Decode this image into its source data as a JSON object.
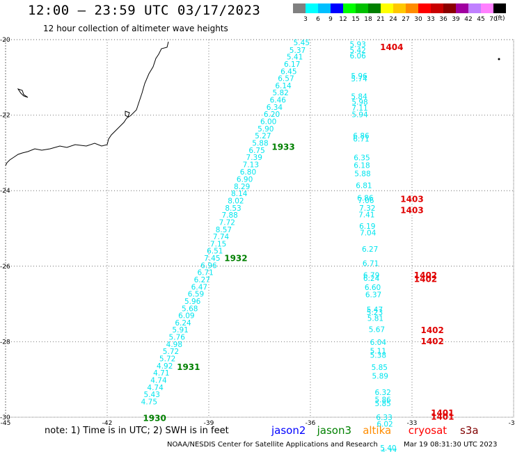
{
  "header": {
    "title": "12:00 – 23:59 UTC 03/17/2023",
    "subtitle": "12 hour collection of altimeter wave heights"
  },
  "color_scale": {
    "labels": [
      "3",
      "6",
      "9",
      "12",
      "15",
      "18",
      "21",
      "24",
      "27",
      "30",
      "33",
      "36",
      "39",
      "42",
      "45",
      "70"
    ],
    "colors": [
      "#808080",
      "#00ffff",
      "#00bfff",
      "#0000ff",
      "#00ff00",
      "#00c000",
      "#008000",
      "#ffff00",
      "#ffc800",
      "#ff8c00",
      "#ff0000",
      "#c80000",
      "#8b0000",
      "#a000a0",
      "#c080ff",
      "#ff80ff",
      "#000000"
    ],
    "unit": "(ft)"
  },
  "map": {
    "lon_min": -45,
    "lon_max": -30,
    "lat_min": -30,
    "lat_max": -20,
    "lat_ticks": [
      "-20",
      "-22",
      "-24",
      "-26",
      "-28",
      "-30"
    ],
    "lon_ticks": [
      "-45",
      "-42",
      "-39",
      "-36",
      "-33",
      "-30"
    ],
    "track_color": "#00e5ee",
    "tracks": [
      {
        "name": "west track",
        "points": [
          [
            -36.26,
            -20.0,
            "5.45"
          ],
          [
            -36.38,
            -20.2,
            "5.37"
          ],
          [
            -36.46,
            -20.38,
            "5.41"
          ],
          [
            -36.54,
            -20.57,
            "6.17"
          ],
          [
            -36.64,
            -20.76,
            "6.45"
          ],
          [
            -36.72,
            -20.95,
            "6.57"
          ],
          [
            -36.8,
            -21.14,
            "6.14"
          ],
          [
            -36.88,
            -21.33,
            "5.82"
          ],
          [
            -36.96,
            -21.52,
            "6.46"
          ],
          [
            -37.06,
            -21.71,
            "6.34"
          ],
          [
            -37.14,
            -21.9,
            "6.20"
          ],
          [
            -37.24,
            -22.09,
            "6.00"
          ],
          [
            -37.32,
            -22.28,
            "5.90"
          ],
          [
            -37.4,
            -22.47,
            "5.27"
          ],
          [
            -37.48,
            -22.66,
            "5.88"
          ],
          [
            -37.58,
            -22.85,
            "6.75"
          ],
          [
            -37.66,
            -23.04,
            "7.39"
          ],
          [
            -37.76,
            -23.23,
            "7.13"
          ],
          [
            -37.84,
            -23.43,
            "6.80"
          ],
          [
            -37.94,
            -23.62,
            "6.90"
          ],
          [
            -38.02,
            -23.81,
            "8.29"
          ],
          [
            -38.1,
            -24.0,
            "8.14"
          ],
          [
            -38.2,
            -24.19,
            "8.02"
          ],
          [
            -38.28,
            -24.38,
            "8.53"
          ],
          [
            -38.38,
            -24.57,
            "7.88"
          ],
          [
            -38.46,
            -24.76,
            "7.72"
          ],
          [
            -38.56,
            -24.95,
            "8.57"
          ],
          [
            -38.64,
            -25.14,
            "7.74"
          ],
          [
            -38.72,
            -25.33,
            "7.15"
          ],
          [
            -38.82,
            -25.52,
            "6.51"
          ],
          [
            -38.9,
            -25.71,
            "7.45"
          ],
          [
            -39.0,
            -25.9,
            "6.96"
          ],
          [
            -39.1,
            -26.09,
            "6.71"
          ],
          [
            -39.2,
            -26.28,
            "6.27"
          ],
          [
            -39.28,
            -26.47,
            "6.47"
          ],
          [
            -39.38,
            -26.66,
            "6.59"
          ],
          [
            -39.48,
            -26.85,
            "5.96"
          ],
          [
            -39.56,
            -27.04,
            "5.68"
          ],
          [
            -39.66,
            -27.23,
            "6.09"
          ],
          [
            -39.76,
            -27.42,
            "6.24"
          ],
          [
            -39.84,
            -27.61,
            "5.91"
          ],
          [
            -39.94,
            -27.8,
            "5.76"
          ],
          [
            -40.02,
            -27.99,
            "4.98"
          ],
          [
            -40.12,
            -28.18,
            "5.72"
          ],
          [
            -40.22,
            -28.37,
            "5.72"
          ],
          [
            -40.3,
            -28.56,
            "4.92"
          ],
          [
            -40.4,
            -28.75,
            "4.71"
          ],
          [
            -40.48,
            -28.94,
            "4.74"
          ],
          [
            -40.58,
            -29.13,
            "4.74"
          ],
          [
            -40.68,
            -29.32,
            "5.43"
          ],
          [
            -40.76,
            -29.51,
            "4.75"
          ]
        ]
      },
      {
        "name": "east track",
        "points": [
          [
            -34.6,
            -20.05,
            "5.93"
          ],
          [
            -34.6,
            -20.2,
            "5.42"
          ],
          [
            -34.6,
            -20.35,
            "6.06"
          ],
          [
            -34.56,
            -20.88,
            "5.96"
          ],
          [
            -34.56,
            -20.96,
            "5.74"
          ],
          [
            -34.56,
            -21.43,
            "5.84"
          ],
          [
            -34.54,
            -21.57,
            "5.98"
          ],
          [
            -34.54,
            -21.73,
            "7.11"
          ],
          [
            -34.54,
            -21.91,
            "5.94"
          ],
          [
            -34.5,
            -22.47,
            "6.86"
          ],
          [
            -34.5,
            -22.55,
            "6.71"
          ],
          [
            -34.48,
            -23.05,
            "6.35"
          ],
          [
            -34.48,
            -23.25,
            "6.18"
          ],
          [
            -34.46,
            -23.47,
            "5.88"
          ],
          [
            -34.42,
            -23.78,
            "6.81"
          ],
          [
            -34.38,
            -24.12,
            "6.86"
          ],
          [
            -34.36,
            -24.18,
            "7.06"
          ],
          [
            -34.32,
            -24.38,
            "7.32"
          ],
          [
            -34.34,
            -24.56,
            "7.41"
          ],
          [
            -34.32,
            -24.86,
            "6.19"
          ],
          [
            -34.3,
            -25.04,
            "7.04"
          ],
          [
            -34.24,
            -25.47,
            "6.27"
          ],
          [
            -34.22,
            -25.85,
            "6.71"
          ],
          [
            -34.2,
            -26.16,
            "6.79"
          ],
          [
            -34.2,
            -26.24,
            "6.24"
          ],
          [
            -34.16,
            -26.48,
            "6.60"
          ],
          [
            -34.14,
            -26.68,
            "6.37"
          ],
          [
            -34.1,
            -27.07,
            "5.47"
          ],
          [
            -34.1,
            -27.15,
            "5.23"
          ],
          [
            -34.08,
            -27.3,
            "5.81"
          ],
          [
            -34.04,
            -27.6,
            "5.67"
          ],
          [
            -34.0,
            -27.94,
            "6.04"
          ],
          [
            -34.0,
            -28.17,
            "5.11"
          ],
          [
            -34.0,
            -28.28,
            "5.38"
          ],
          [
            -33.96,
            -28.6,
            "5.85"
          ],
          [
            -33.94,
            -28.83,
            "5.89"
          ],
          [
            -33.86,
            -29.26,
            "6.32"
          ],
          [
            -33.86,
            -29.46,
            "5.86"
          ],
          [
            -33.86,
            -29.56,
            "5.85"
          ],
          [
            -33.82,
            -29.93,
            "6.33"
          ],
          [
            -33.8,
            -30.1,
            "6.02"
          ],
          [
            -33.7,
            -30.74,
            "5.40"
          ],
          [
            -33.68,
            -30.84,
            "4.77"
          ]
        ]
      }
    ],
    "time_labels": [
      {
        "text": "1404",
        "lon": -33.6,
        "lat": -20.13,
        "color": "#e00000"
      },
      {
        "text": "1403",
        "lon": -33.0,
        "lat": -24.15,
        "color": "#e00000"
      },
      {
        "text": "1403",
        "lon": -33.0,
        "lat": -24.45,
        "color": "#e00000"
      },
      {
        "text": "1402",
        "lon": -32.6,
        "lat": -26.17,
        "color": "#e00000"
      },
      {
        "text": "1402",
        "lon": -32.6,
        "lat": -26.27,
        "color": "#e00000"
      },
      {
        "text": "1402",
        "lon": -32.4,
        "lat": -27.62,
        "color": "#e00000"
      },
      {
        "text": "1402",
        "lon": -32.4,
        "lat": -27.92,
        "color": "#e00000"
      },
      {
        "text": "1401",
        "lon": -32.1,
        "lat": -29.82,
        "color": "#e00000"
      },
      {
        "text": "1401",
        "lon": -32.1,
        "lat": -29.92,
        "color": "#e00000"
      },
      {
        "text": "1933",
        "lon": -36.8,
        "lat": -22.77,
        "color": "#008000"
      },
      {
        "text": "1932",
        "lon": -38.2,
        "lat": -25.72,
        "color": "#008000"
      },
      {
        "text": "1931",
        "lon": -39.6,
        "lat": -28.6,
        "color": "#008000"
      },
      {
        "text": "1930",
        "lon": -40.6,
        "lat": -29.95,
        "color": "#008000"
      }
    ]
  },
  "footer": {
    "note": "note:  1) Time is in UTC;  2) SWH is in feet",
    "satellites": [
      {
        "name": "jason2",
        "color": "#0000ff"
      },
      {
        "name": "jason3",
        "color": "#008000"
      },
      {
        "name": "altika",
        "color": "#ff8c00"
      },
      {
        "name": "cryosat",
        "color": "#ff0000"
      },
      {
        "name": "s3a",
        "color": "#800000"
      }
    ],
    "credit": "NOAA/NESDIS Center for Satellite Applications and Research",
    "timestamp": "Mar 19 08:31:30 UTC 2023"
  }
}
